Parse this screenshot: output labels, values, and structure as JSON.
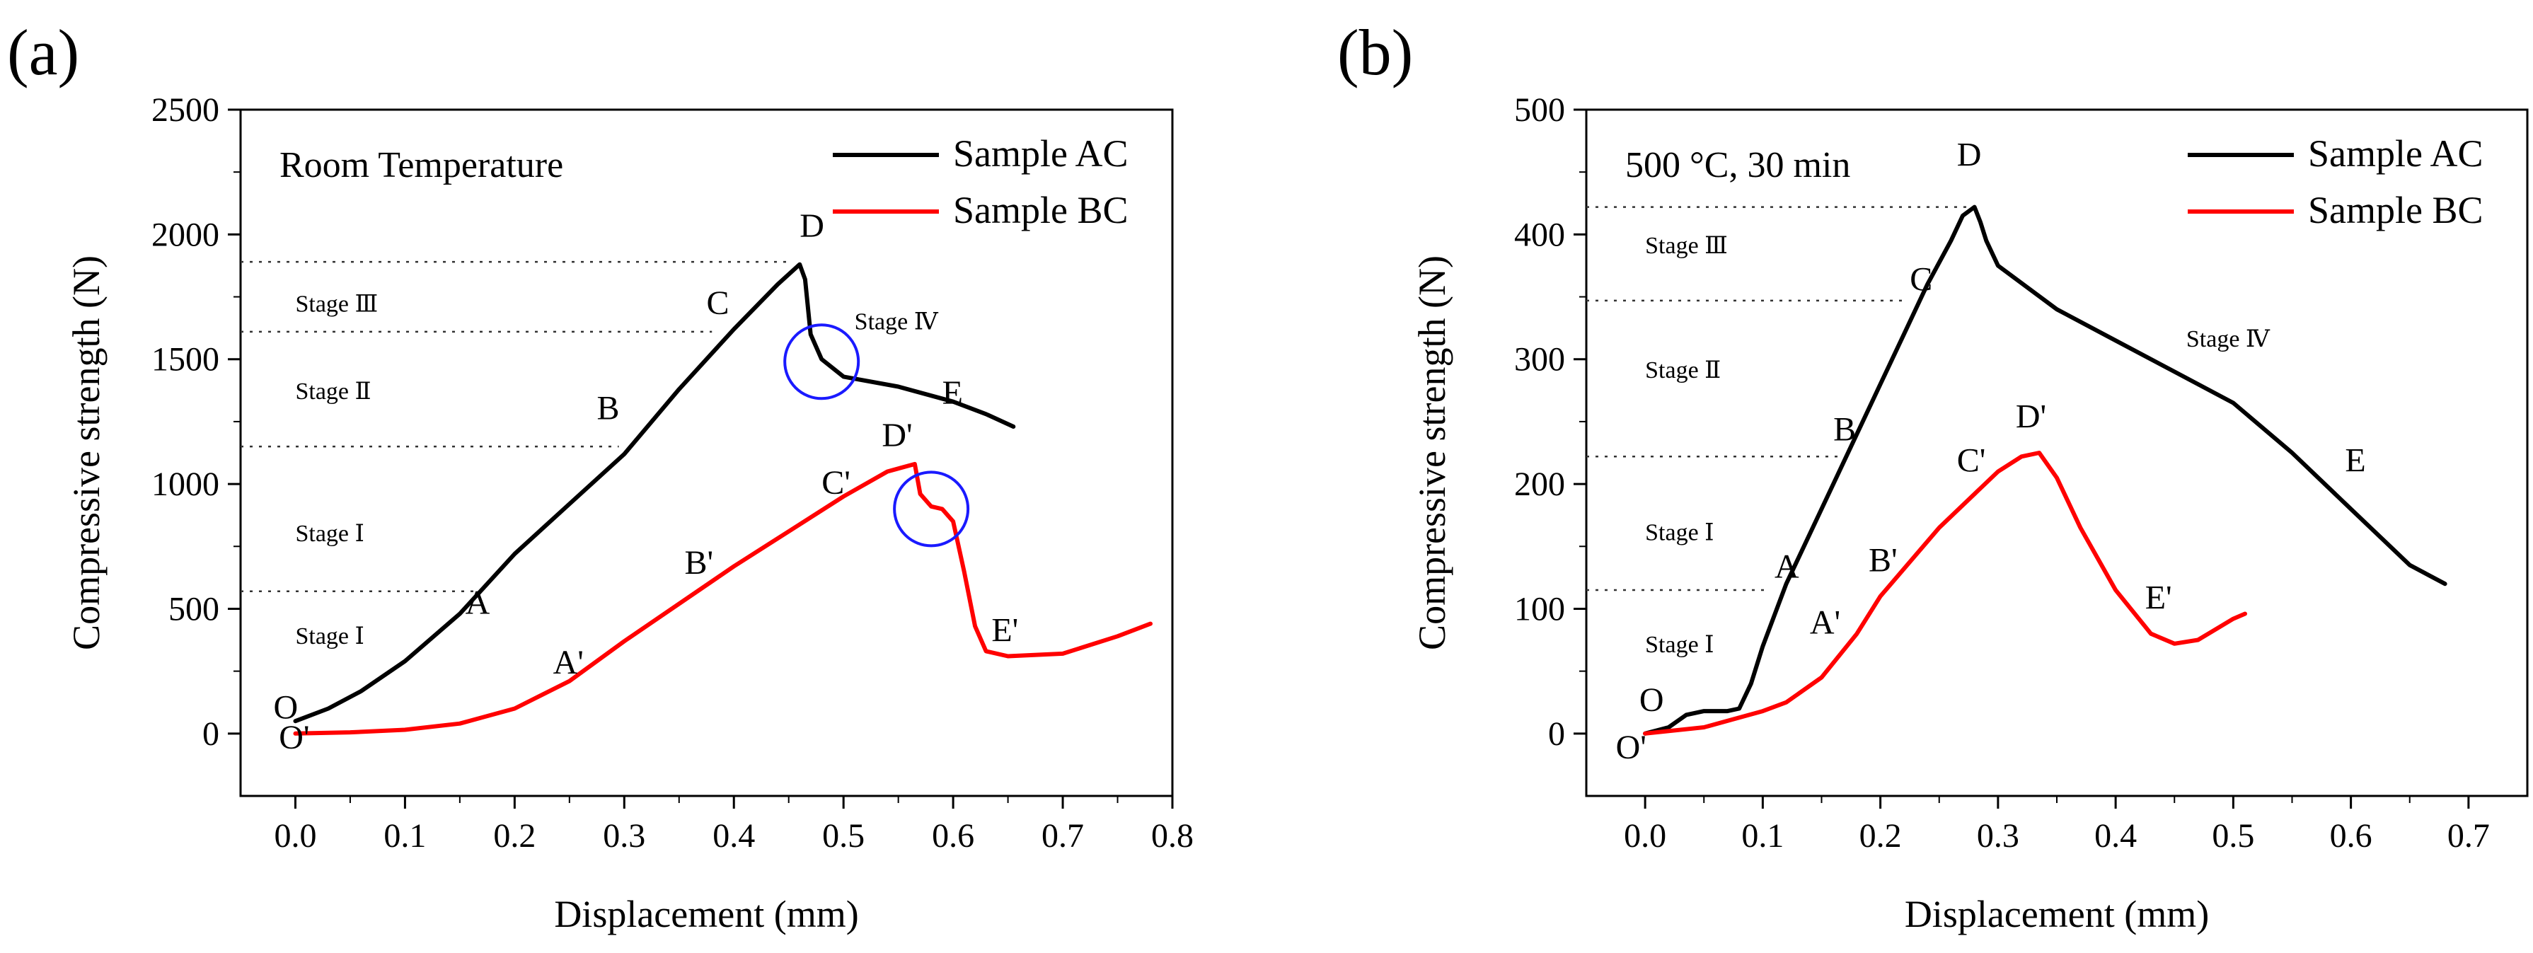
{
  "chart_data": [
    {
      "panel": "(a)",
      "type": "line",
      "xlabel": "Displacement (mm)",
      "ylabel": "Compressive strength (N)",
      "xlim": [
        -0.05,
        0.8
      ],
      "ylim": [
        -250,
        2500
      ],
      "xticks": [
        "0.0",
        "0.1",
        "0.2",
        "0.3",
        "0.4",
        "0.5",
        "0.6",
        "0.7",
        "0.8"
      ],
      "yticks": [
        "0",
        "500",
        "1000",
        "1500",
        "2000",
        "2500"
      ],
      "xtick_values": [
        0,
        0.1,
        0.2,
        0.3,
        0.4,
        0.5,
        0.6,
        0.7,
        0.8
      ],
      "ytick_values": [
        0,
        500,
        1000,
        1500,
        2000,
        2500
      ],
      "grid": false,
      "legend_position": "top-right",
      "annotation": "Room Temperature",
      "series": [
        {
          "name": "Sample AC",
          "color": "#000000",
          "x": [
            0.0,
            0.03,
            0.06,
            0.1,
            0.15,
            0.2,
            0.25,
            0.3,
            0.35,
            0.4,
            0.44,
            0.46,
            0.465,
            0.47,
            0.48,
            0.5,
            0.55,
            0.6,
            0.63,
            0.655
          ],
          "y": [
            50,
            100,
            170,
            290,
            480,
            720,
            920,
            1120,
            1380,
            1620,
            1800,
            1880,
            1820,
            1600,
            1500,
            1430,
            1390,
            1330,
            1280,
            1230
          ]
        },
        {
          "name": "Sample BC",
          "color": "#ff0000",
          "x": [
            0.0,
            0.05,
            0.1,
            0.15,
            0.2,
            0.25,
            0.3,
            0.35,
            0.4,
            0.45,
            0.5,
            0.54,
            0.565,
            0.57,
            0.58,
            0.59,
            0.6,
            0.61,
            0.62,
            0.63,
            0.65,
            0.7,
            0.75,
            0.78
          ],
          "y": [
            0,
            5,
            15,
            40,
            100,
            210,
            370,
            520,
            670,
            810,
            950,
            1050,
            1080,
            960,
            910,
            900,
            850,
            650,
            430,
            330,
            310,
            320,
            390,
            440
          ]
        }
      ],
      "point_labels": [
        {
          "text": "O",
          "x": -0.02,
          "y": 60
        },
        {
          "text": "O'",
          "x": -0.015,
          "y": -60
        },
        {
          "text": "A",
          "x": 0.155,
          "y": 480
        },
        {
          "text": "B",
          "x": 0.275,
          "y": 1260
        },
        {
          "text": "C",
          "x": 0.375,
          "y": 1680
        },
        {
          "text": "D",
          "x": 0.46,
          "y": 1990
        },
        {
          "text": "E",
          "x": 0.59,
          "y": 1320
        },
        {
          "text": "A'",
          "x": 0.235,
          "y": 240
        },
        {
          "text": "B'",
          "x": 0.355,
          "y": 640
        },
        {
          "text": "C'",
          "x": 0.48,
          "y": 960
        },
        {
          "text": "D'",
          "x": 0.535,
          "y": 1150
        },
        {
          "text": "E'",
          "x": 0.635,
          "y": 370
        }
      ],
      "stage_lines": [
        {
          "y": 1890,
          "x_end": 0.45
        },
        {
          "y": 1610,
          "x_end": 0.38
        },
        {
          "y": 1150,
          "x_end": 0.295
        },
        {
          "y": 570,
          "x_end": 0.175
        }
      ],
      "stage_labels": [
        {
          "text": "Stage Ⅲ",
          "x": 0.0,
          "y": 1690
        },
        {
          "text": "Stage Ⅱ",
          "x": 0.0,
          "y": 1340
        },
        {
          "text": "Stage Ⅰ",
          "x": 0.0,
          "y": 770
        },
        {
          "text": "Stage Ⅰ",
          "x": 0.0,
          "y": 360
        },
        {
          "text": "Stage Ⅳ",
          "x": 0.51,
          "y": 1620
        }
      ],
      "highlight_circles": [
        {
          "x": 0.48,
          "y": 1490
        },
        {
          "x": 0.58,
          "y": 900
        }
      ]
    },
    {
      "panel": "(b)",
      "type": "line",
      "xlabel": "Displacement (mm)",
      "ylabel": "Compressive strength (N)",
      "xlim": [
        -0.05,
        0.75
      ],
      "ylim": [
        -50,
        500
      ],
      "xticks": [
        "0.0",
        "0.1",
        "0.2",
        "0.3",
        "0.4",
        "0.5",
        "0.6",
        "0.7"
      ],
      "yticks": [
        "0",
        "100",
        "200",
        "300",
        "400",
        "500"
      ],
      "xtick_values": [
        0,
        0.1,
        0.2,
        0.3,
        0.4,
        0.5,
        0.6,
        0.7
      ],
      "ytick_values": [
        0,
        100,
        200,
        300,
        400,
        500
      ],
      "grid": false,
      "legend_position": "top-right",
      "annotation": "500 °C, 30 min",
      "series": [
        {
          "name": "Sample AC",
          "color": "#000000",
          "x": [
            0.0,
            0.02,
            0.035,
            0.05,
            0.07,
            0.08,
            0.09,
            0.1,
            0.12,
            0.15,
            0.18,
            0.2,
            0.22,
            0.24,
            0.26,
            0.27,
            0.28,
            0.285,
            0.29,
            0.3,
            0.35,
            0.4,
            0.45,
            0.5,
            0.55,
            0.6,
            0.65,
            0.68
          ],
          "y": [
            0,
            5,
            15,
            18,
            18,
            20,
            40,
            70,
            120,
            180,
            240,
            280,
            320,
            360,
            395,
            415,
            422,
            410,
            395,
            375,
            340,
            315,
            290,
            265,
            225,
            180,
            135,
            120
          ]
        },
        {
          "name": "Sample BC",
          "color": "#ff0000",
          "x": [
            0.0,
            0.05,
            0.1,
            0.12,
            0.15,
            0.18,
            0.2,
            0.25,
            0.3,
            0.32,
            0.335,
            0.35,
            0.37,
            0.4,
            0.43,
            0.45,
            0.47,
            0.5,
            0.51
          ],
          "y": [
            0,
            5,
            18,
            25,
            45,
            80,
            110,
            165,
            210,
            222,
            225,
            205,
            165,
            115,
            80,
            72,
            75,
            92,
            96
          ]
        }
      ],
      "point_labels": [
        {
          "text": "O",
          "x": -0.005,
          "y": 18
        },
        {
          "text": "O'",
          "x": -0.025,
          "y": -20
        },
        {
          "text": "A",
          "x": 0.11,
          "y": 125
        },
        {
          "text": "B",
          "x": 0.16,
          "y": 235
        },
        {
          "text": "C",
          "x": 0.225,
          "y": 355
        },
        {
          "text": "D",
          "x": 0.265,
          "y": 455
        },
        {
          "text": "E",
          "x": 0.595,
          "y": 210
        },
        {
          "text": "A'",
          "x": 0.14,
          "y": 80
        },
        {
          "text": "B'",
          "x": 0.19,
          "y": 130
        },
        {
          "text": "C'",
          "x": 0.265,
          "y": 210
        },
        {
          "text": "D'",
          "x": 0.315,
          "y": 245
        },
        {
          "text": "E'",
          "x": 0.425,
          "y": 100
        }
      ],
      "stage_lines": [
        {
          "y": 422,
          "x_end": 0.275
        },
        {
          "y": 347,
          "x_end": 0.22
        },
        {
          "y": 222,
          "x_end": 0.165
        },
        {
          "y": 115,
          "x_end": 0.105
        }
      ],
      "stage_labels": [
        {
          "text": "Stage Ⅲ",
          "x": 0.0,
          "y": 385
        },
        {
          "text": "Stage Ⅱ",
          "x": 0.0,
          "y": 285
        },
        {
          "text": "Stage Ⅰ",
          "x": 0.0,
          "y": 155
        },
        {
          "text": "Stage Ⅰ",
          "x": 0.0,
          "y": 65
        },
        {
          "text": "Stage Ⅳ",
          "x": 0.46,
          "y": 310
        }
      ],
      "highlight_circles": []
    }
  ]
}
